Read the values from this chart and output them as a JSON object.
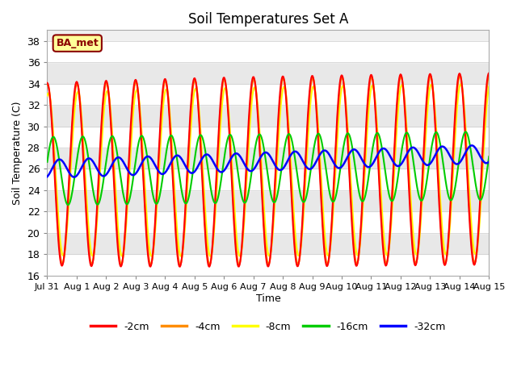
{
  "title": "Soil Temperatures Set A",
  "xlabel": "Time",
  "ylabel": "Soil Temperature (C)",
  "ylim": [
    16,
    39
  ],
  "yticks": [
    16,
    18,
    20,
    22,
    24,
    26,
    28,
    30,
    32,
    34,
    36,
    38
  ],
  "xtick_labels": [
    "Jul 31",
    "Aug 1",
    "Aug 2",
    "Aug 3",
    "Aug 4",
    "Aug 5",
    "Aug 6",
    "Aug 7",
    "Aug 8",
    "Aug 9",
    "Aug 10",
    "Aug 11",
    "Aug 12",
    "Aug 13",
    "Aug 14",
    "Aug 15"
  ],
  "colors": {
    "-2cm": "#FF0000",
    "-4cm": "#FF8C00",
    "-8cm": "#FFFF00",
    "-16cm": "#00CC00",
    "-32cm": "#0000FF"
  },
  "legend_labels": [
    "-2cm",
    "-4cm",
    "-8cm",
    "-16cm",
    "-32cm"
  ],
  "annotation_text": "BA_met",
  "annotation_color": "#8B0000",
  "annotation_bg": "#FFFF99",
  "linewidth": 1.5,
  "n_days": 15,
  "samples_per_day": 48,
  "figsize": [
    6.4,
    4.8
  ],
  "dpi": 100
}
